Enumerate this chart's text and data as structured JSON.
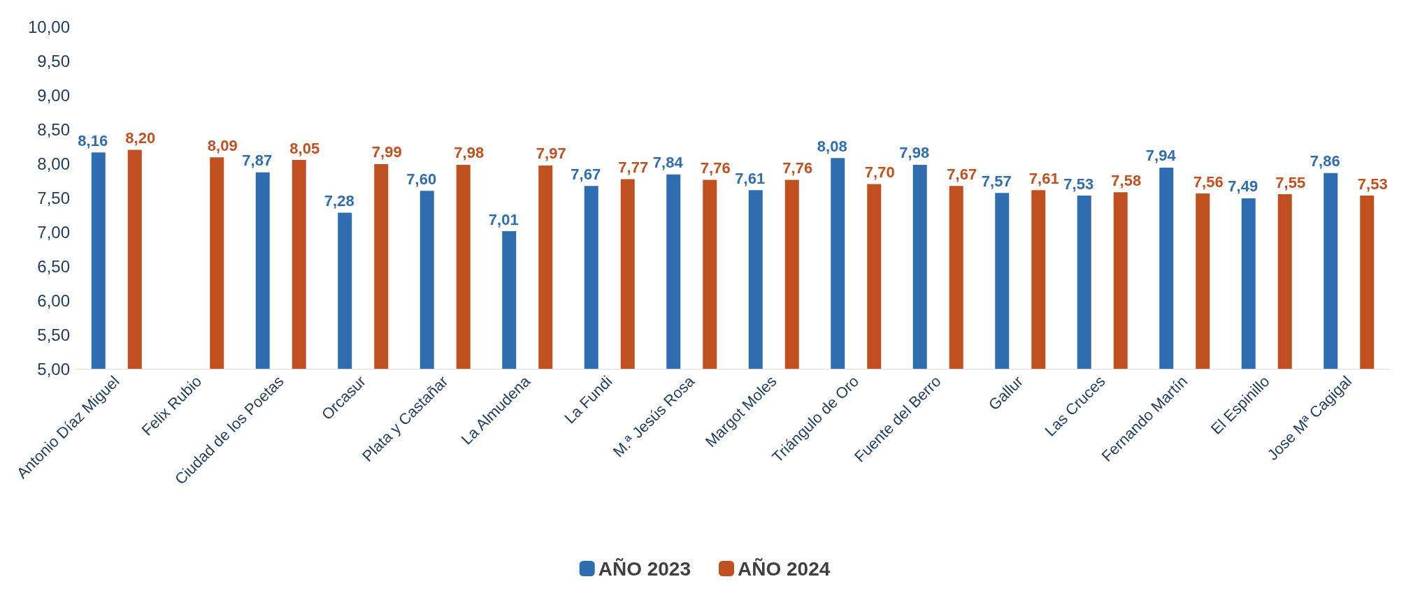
{
  "chart_data": {
    "type": "bar",
    "categories": [
      "Antonio Díaz Miguel",
      "Felix Rubio",
      "Ciudad de los Poetas",
      "Orcasur",
      "Plata y Castañar",
      "La Almudena",
      "La Fundi",
      "M.ª Jesús Rosa",
      "Margot Moles",
      "Triángulo de Oro",
      "Fuente del Berro",
      "Gallur",
      "Las Cruces",
      "Fernando Martín",
      "El Espinillo",
      "Jose Mª Cagigal"
    ],
    "series": [
      {
        "name": "AÑO 2023",
        "color": "#2f6db0",
        "values": [
          8.16,
          null,
          7.87,
          7.28,
          7.6,
          7.01,
          7.67,
          7.84,
          7.61,
          8.08,
          7.98,
          7.57,
          7.53,
          7.94,
          7.49,
          7.86
        ],
        "value_labels": [
          "8,16",
          null,
          "7,87",
          "7,28",
          "7,60",
          "7,01",
          "7,67",
          "7,84",
          "7,61",
          "8,08",
          "7,98",
          "7,57",
          "7,53",
          "7,94",
          "7,49",
          "7,86"
        ]
      },
      {
        "name": "AÑO 2024",
        "color": "#c0501f",
        "values": [
          8.2,
          8.09,
          8.05,
          7.99,
          7.98,
          7.97,
          7.77,
          7.76,
          7.76,
          7.7,
          7.67,
          7.61,
          7.58,
          7.56,
          7.55,
          7.53
        ],
        "value_labels": [
          "8,20",
          "8,09",
          "8,05",
          "7,99",
          "7,98",
          "7,97",
          "7,77",
          "7,76",
          "7,76",
          "7,70",
          "7,67",
          "7,61",
          "7,58",
          "7,56",
          "7,55",
          "7,53"
        ]
      }
    ],
    "ylim": [
      5,
      10
    ],
    "yticks": [
      {
        "value": 5,
        "label": "5,00"
      },
      {
        "value": 5.5,
        "label": "5,50"
      },
      {
        "value": 6,
        "label": "6,00"
      },
      {
        "value": 6.5,
        "label": "6,50"
      },
      {
        "value": 7,
        "label": "7,00"
      },
      {
        "value": 7.5,
        "label": "7,50"
      },
      {
        "value": 8,
        "label": "8,00"
      },
      {
        "value": 8.5,
        "label": "8,50"
      },
      {
        "value": 9,
        "label": "9,00"
      },
      {
        "value": 9.5,
        "label": "9,50"
      },
      {
        "value": 10,
        "label": "10,00"
      }
    ],
    "grid": false,
    "legend": "bottom"
  }
}
